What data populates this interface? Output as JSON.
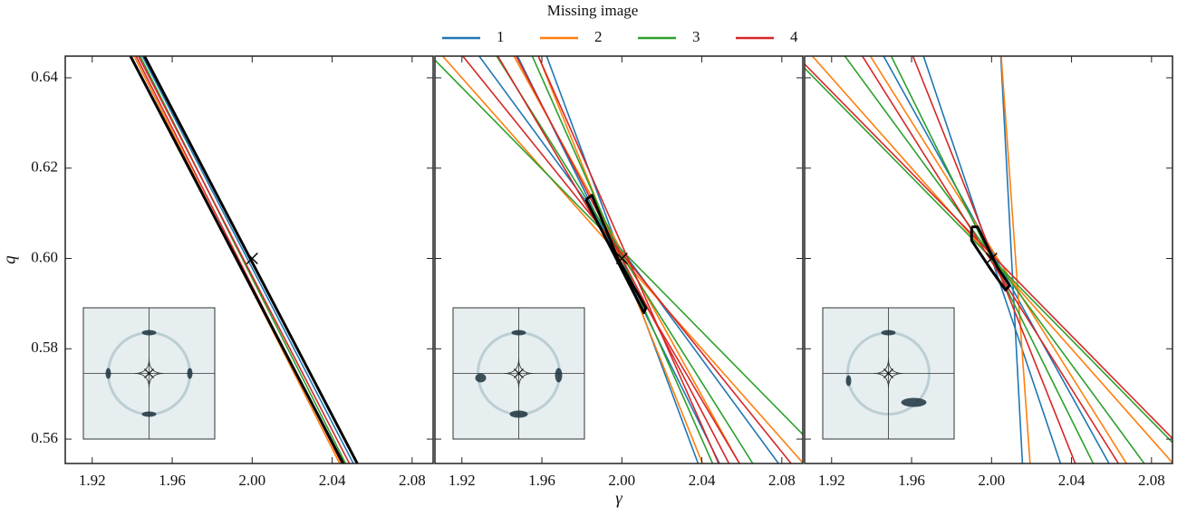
{
  "legend": {
    "title": "Missing image",
    "entries": [
      {
        "label": "1",
        "color": "#1f77b4"
      },
      {
        "label": "2",
        "color": "#ff7f0e"
      },
      {
        "label": "3",
        "color": "#2ca02c"
      },
      {
        "label": "4",
        "color": "#d62728"
      }
    ]
  },
  "chart_data": [
    {
      "type": "line",
      "ylabel": "q",
      "yticklabels": true,
      "xlim": [
        1.9065,
        2.0905
      ],
      "ylim": [
        0.5546,
        0.6448
      ],
      "xticks": [
        1.92,
        1.96,
        {
          "value": 2.0,
          "label": "2.00"
        },
        2.04,
        2.08
      ],
      "yticks": [
        0.56,
        0.58,
        {
          "value": 0.6,
          "label": "0.60"
        },
        0.62,
        0.64
      ],
      "truth": {
        "x": 2.0,
        "y": 0.6
      },
      "series": [
        {
          "color": "#ff7f0e",
          "x": [
            1.935,
            2.049
          ],
          "values": [
            0.65,
            0.55
          ]
        },
        {
          "color": "#1f77b4",
          "x": [
            1.939,
            2.056
          ],
          "values": [
            0.65,
            0.55
          ]
        },
        {
          "color": "#2ca02c",
          "x": [
            1.938,
            2.052
          ],
          "values": [
            0.65,
            0.55
          ]
        },
        {
          "color": "#d62728",
          "x": [
            1.937,
            2.054
          ],
          "values": [
            0.65,
            0.55
          ]
        },
        {
          "color": "#d62728",
          "x": [
            1.936,
            2.05
          ],
          "values": [
            0.65,
            0.55
          ]
        },
        {
          "color": "#000000",
          "linewidth": 3,
          "x": [
            1.933,
            2.051
          ],
          "values": [
            0.65,
            0.55
          ]
        },
        {
          "color": "#000000",
          "linewidth": 3,
          "x": [
            1.94,
            2.058
          ],
          "values": [
            0.65,
            0.55
          ]
        }
      ]
    },
    {
      "type": "line",
      "xlabel": "γ",
      "yticklabels": false,
      "xlim": [
        1.9065,
        2.0905
      ],
      "ylim": [
        0.5546,
        0.6448
      ],
      "xticks": [
        1.92,
        1.96,
        {
          "value": 2.0,
          "label": "2.00"
        },
        2.04,
        2.08
      ],
      "yticks": [
        0.56,
        0.58,
        {
          "value": 0.6,
          "label": "0.60"
        },
        0.62,
        0.64
      ],
      "truth": {
        "x": 2.0,
        "y": 0.6
      },
      "series": [
        {
          "color": "#1f77b4",
          "x": [
            1.958,
            2.042
          ],
          "values": [
            0.65,
            0.55
          ]
        },
        {
          "color": "#1f77b4",
          "x": [
            1.942,
            2.054
          ],
          "values": [
            0.65,
            0.55
          ]
        },
        {
          "color": "#1f77b4",
          "x": [
            1.92,
            2.086
          ],
          "values": [
            0.65,
            0.55
          ]
        },
        {
          "color": "#ff7f0e",
          "x": [
            1.9,
            2.1
          ],
          "values": [
            0.65,
            0.55
          ]
        },
        {
          "color": "#ff7f0e",
          "x": [
            1.9395,
            2.0645
          ],
          "values": [
            0.65,
            0.55
          ]
        },
        {
          "color": "#ff7f0e",
          "x": [
            1.9535,
            2.0445
          ],
          "values": [
            0.65,
            0.55
          ]
        },
        {
          "color": "#2ca02c",
          "x": [
            1.93,
            2.072
          ],
          "values": [
            0.65,
            0.55
          ]
        },
        {
          "color": "#2ca02c",
          "x": [
            1.95,
            2.05
          ],
          "values": [
            0.65,
            0.55
          ]
        },
        {
          "color": "#2ca02c",
          "x": [
            1.893,
            2.115
          ],
          "values": [
            0.65,
            0.55
          ]
        },
        {
          "color": "#d62728",
          "x": [
            1.911,
            2.093
          ],
          "values": [
            0.65,
            0.55
          ]
        },
        {
          "color": "#d62728",
          "x": [
            1.941,
            2.059
          ],
          "values": [
            0.65,
            0.55
          ]
        },
        {
          "color": "#d62728",
          "x": [
            1.953,
            2.053
          ],
          "values": [
            0.65,
            0.55
          ]
        },
        {
          "color": "#d62728",
          "x": [
            1.931,
            2.065
          ],
          "values": [
            0.65,
            0.55
          ]
        },
        {
          "color": "#000000",
          "linewidth": 3,
          "x": [
            1.982,
            1.985,
            1.998,
            2.012,
            2.011,
            1.996,
            1.982
          ],
          "values": [
            0.613,
            0.614,
            0.6,
            0.589,
            0.588,
            0.601,
            0.613
          ]
        }
      ]
    },
    {
      "type": "line",
      "yticklabels": false,
      "xlim": [
        1.9065,
        2.0905
      ],
      "ylim": [
        0.5546,
        0.6448
      ],
      "xticks": [
        1.92,
        1.96,
        {
          "value": 2.0,
          "label": "2.00"
        },
        2.04,
        2.08
      ],
      "yticks": [
        0.56,
        0.58,
        {
          "value": 0.6,
          "label": "0.60"
        },
        0.62,
        0.64
      ],
      "truth": {
        "x": 2.0,
        "y": 0.6
      },
      "series": [
        {
          "color": "#1f77b4",
          "x": [
            2.004,
            2.016
          ],
          "values": [
            0.65,
            0.55
          ]
        },
        {
          "color": "#1f77b4",
          "x": [
            1.962,
            2.038
          ],
          "values": [
            0.65,
            0.55
          ]
        },
        {
          "color": "#1f77b4",
          "x": [
            1.9395,
            2.0645
          ],
          "values": [
            0.65,
            0.55
          ]
        },
        {
          "color": "#ff7f0e",
          "x": [
            2.004,
            2.02
          ],
          "values": [
            0.65,
            0.55
          ]
        },
        {
          "color": "#ff7f0e",
          "x": [
            1.9,
            2.1
          ],
          "values": [
            0.65,
            0.55
          ]
        },
        {
          "color": "#ff7f0e",
          "x": [
            1.932,
            2.074
          ],
          "values": [
            0.65,
            0.55
          ]
        },
        {
          "color": "#2ca02c",
          "x": [
            1.944,
            2.056
          ],
          "values": [
            0.65,
            0.55
          ]
        },
        {
          "color": "#2ca02c",
          "x": [
            1.918,
            2.084
          ],
          "values": [
            0.65,
            0.55
          ]
        },
        {
          "color": "#2ca02c",
          "x": [
            1.889,
            2.111
          ],
          "values": [
            0.65,
            0.55
          ]
        },
        {
          "color": "#d62728",
          "x": [
            1.891,
            2.113
          ],
          "values": [
            0.65,
            0.55
          ]
        },
        {
          "color": "#d62728",
          "x": [
            1.928,
            2.07
          ],
          "values": [
            0.65,
            0.55
          ]
        },
        {
          "color": "#d62728",
          "x": [
            1.956,
            2.046
          ],
          "values": [
            0.65,
            0.55
          ]
        },
        {
          "color": "#000000",
          "linewidth": 3,
          "x": [
            1.99,
            1.993,
            2.003,
            2.009,
            2.007,
            1.999,
            1.99,
            1.99
          ],
          "values": [
            0.607,
            0.607,
            0.598,
            0.594,
            0.593,
            0.598,
            0.604,
            0.607
          ]
        }
      ]
    }
  ]
}
